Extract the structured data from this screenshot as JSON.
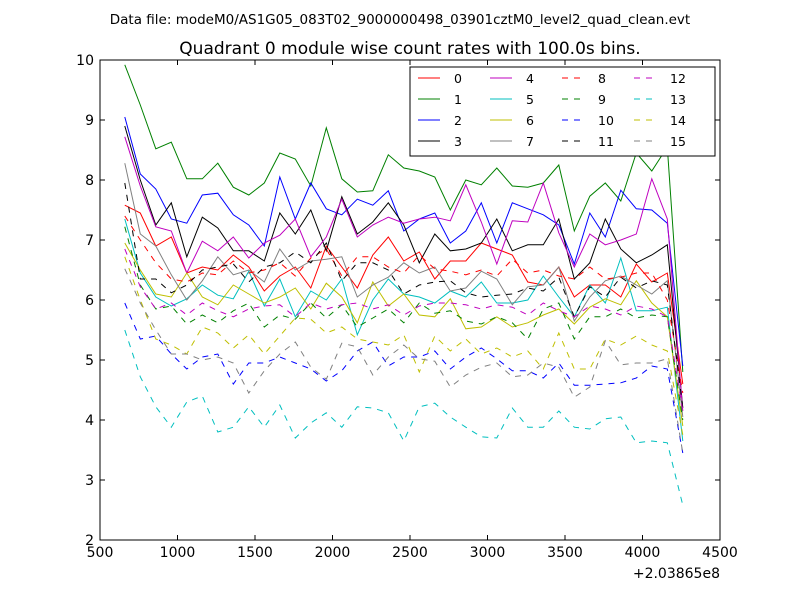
{
  "header": {
    "datafile": "Data file: modeM0/AS1G05_083T02_9000000498_03901cztM0_level2_quad_clean.evt"
  },
  "chart_data": {
    "type": "line",
    "title": "Quadrant 0 module wise count rates with 100.0s bins.",
    "xlabel": "",
    "ylabel": "",
    "x_offset_label": "+2.03865e8",
    "xlim": [
      500,
      4500
    ],
    "ylim": [
      2,
      10
    ],
    "xticks": [
      500,
      1000,
      1500,
      2000,
      2500,
      3000,
      3500,
      4000,
      4500
    ],
    "yticks": [
      2,
      3,
      4,
      5,
      6,
      7,
      8,
      9,
      10
    ],
    "grid": false,
    "legend_position": "top-right",
    "x": [
      660,
      760,
      860,
      960,
      1060,
      1160,
      1260,
      1360,
      1460,
      1560,
      1660,
      1760,
      1860,
      1960,
      2060,
      2160,
      2260,
      2360,
      2460,
      2560,
      2660,
      2760,
      2860,
      2960,
      3060,
      3160,
      3260,
      3360,
      3460,
      3560,
      3660,
      3760,
      3860,
      3960,
      4060,
      4160,
      4260
    ],
    "series": [
      {
        "name": "0",
        "color": "#ff0000",
        "dash": "solid",
        "values": [
          7.58,
          7.45,
          6.9,
          7.05,
          6.45,
          6.55,
          6.5,
          6.75,
          6.55,
          6.15,
          6.4,
          6.55,
          6.2,
          6.9,
          6.55,
          6.2,
          6.75,
          7.05,
          6.65,
          6.8,
          6.35,
          6.65,
          6.65,
          6.95,
          6.85,
          6.75,
          6.3,
          6.25,
          6.55,
          6.05,
          6.25,
          6.25,
          6.05,
          6.6,
          6.3,
          6.45,
          4.6
        ]
      },
      {
        "name": "1",
        "color": "#008000",
        "dash": "solid",
        "values": [
          9.92,
          9.25,
          8.52,
          8.63,
          8.02,
          8.02,
          8.28,
          7.88,
          7.75,
          7.95,
          8.45,
          8.35,
          7.9,
          8.87,
          8.02,
          7.8,
          7.82,
          8.42,
          8.2,
          8.15,
          8.05,
          7.5,
          8.0,
          7.92,
          8.2,
          7.9,
          7.88,
          7.95,
          8.25,
          7.15,
          7.73,
          7.95,
          7.65,
          8.45,
          8.15,
          8.55,
          4.8
        ]
      },
      {
        "name": "2",
        "color": "#0000ff",
        "dash": "solid",
        "values": [
          9.05,
          8.1,
          7.85,
          7.35,
          7.28,
          7.75,
          7.78,
          7.42,
          7.25,
          6.9,
          8.05,
          7.35,
          7.95,
          7.52,
          7.42,
          7.68,
          7.58,
          7.82,
          7.15,
          7.35,
          7.45,
          6.95,
          7.15,
          7.62,
          6.95,
          7.62,
          7.52,
          7.42,
          7.25,
          6.6,
          7.45,
          7.05,
          7.83,
          7.52,
          7.5,
          7.28,
          4.9
        ]
      },
      {
        "name": "3",
        "color": "#000000",
        "dash": "solid",
        "values": [
          8.9,
          8.0,
          7.25,
          7.62,
          6.72,
          7.38,
          7.2,
          6.82,
          6.82,
          6.65,
          7.45,
          7.1,
          7.5,
          6.82,
          7.72,
          7.1,
          7.3,
          7.62,
          7.25,
          6.62,
          7.1,
          6.82,
          6.85,
          6.95,
          7.35,
          6.82,
          6.92,
          6.92,
          7.35,
          6.35,
          6.62,
          7.35,
          6.85,
          6.62,
          6.75,
          6.92,
          4.2
        ]
      },
      {
        "name": "4",
        "color": "#bf00bf",
        "dash": "solid",
        "values": [
          8.72,
          7.9,
          7.22,
          7.15,
          6.45,
          6.98,
          6.82,
          7.05,
          6.7,
          6.95,
          7.08,
          7.35,
          6.72,
          7.05,
          7.68,
          7.05,
          7.25,
          7.38,
          7.28,
          7.35,
          7.38,
          7.32,
          7.92,
          7.3,
          6.6,
          7.32,
          7.3,
          7.95,
          7.12,
          6.55,
          7.1,
          6.92,
          7.0,
          7.1,
          8.02,
          7.35,
          4.15
        ]
      },
      {
        "name": "5",
        "color": "#00bfbf",
        "dash": "solid",
        "values": [
          7.35,
          6.45,
          6.05,
          5.9,
          6.02,
          6.25,
          6.08,
          6.02,
          6.48,
          5.9,
          6.35,
          5.72,
          6.15,
          6.0,
          6.35,
          5.42,
          6.0,
          6.35,
          6.1,
          6.05,
          5.95,
          6.15,
          6.05,
          6.3,
          5.95,
          5.95,
          6.0,
          6.4,
          6.05,
          5.72,
          6.25,
          5.95,
          6.7,
          5.82,
          5.82,
          5.88,
          3.65
        ]
      },
      {
        "name": "6",
        "color": "#bfbf00",
        "dash": "solid",
        "values": [
          6.95,
          6.5,
          6.1,
          6.05,
          6.45,
          6.05,
          5.92,
          6.25,
          6.1,
          5.95,
          6.05,
          6.2,
          5.85,
          6.28,
          6.05,
          5.62,
          6.3,
          5.9,
          6.1,
          5.75,
          5.72,
          6.02,
          5.52,
          5.55,
          5.72,
          5.55,
          5.62,
          5.75,
          5.85,
          5.6,
          5.88,
          6.02,
          5.92,
          6.32,
          5.95,
          5.72,
          3.9
        ]
      },
      {
        "name": "7",
        "color": "#808080",
        "dash": "solid",
        "values": [
          8.28,
          7.1,
          6.9,
          6.42,
          6.0,
          6.32,
          6.72,
          6.42,
          6.5,
          6.3,
          6.85,
          6.5,
          6.65,
          6.68,
          6.72,
          6.05,
          6.25,
          6.38,
          6.62,
          6.45,
          6.55,
          6.15,
          6.2,
          6.48,
          6.35,
          5.92,
          6.22,
          6.25,
          6.55,
          5.65,
          6.05,
          6.32,
          6.4,
          6.25,
          6.1,
          6.32,
          4.05
        ]
      },
      {
        "name": "8",
        "color": "#ff0000",
        "dash": "dashed",
        "values": [
          7.4,
          7.0,
          6.62,
          6.35,
          6.3,
          6.45,
          6.42,
          6.65,
          6.45,
          6.5,
          6.62,
          6.4,
          6.7,
          6.85,
          6.4,
          6.72,
          6.72,
          6.55,
          6.45,
          6.75,
          6.52,
          6.48,
          6.42,
          6.5,
          6.4,
          6.68,
          6.45,
          6.5,
          6.4,
          6.35,
          6.55,
          6.35,
          6.38,
          6.45,
          6.45,
          6.0,
          4.45
        ]
      },
      {
        "name": "9",
        "color": "#008000",
        "dash": "dashed",
        "values": [
          7.22,
          6.25,
          5.85,
          5.9,
          5.6,
          5.75,
          5.62,
          5.82,
          5.95,
          5.55,
          5.75,
          5.68,
          5.95,
          5.7,
          5.92,
          5.55,
          5.7,
          5.85,
          5.62,
          5.95,
          5.78,
          5.82,
          5.65,
          5.6,
          5.72,
          5.62,
          5.35,
          5.85,
          5.95,
          5.35,
          5.72,
          5.72,
          5.85,
          5.7,
          5.75,
          5.72,
          4.0
        ]
      },
      {
        "name": "10",
        "color": "#0000ff",
        "dash": "dashed",
        "values": [
          5.95,
          5.35,
          5.4,
          5.1,
          4.85,
          5.05,
          5.1,
          4.6,
          4.95,
          4.95,
          5.05,
          4.95,
          4.85,
          4.65,
          4.82,
          5.15,
          5.3,
          4.9,
          5.05,
          5.05,
          5.15,
          4.85,
          5.05,
          5.2,
          5.02,
          4.82,
          4.82,
          4.7,
          4.95,
          4.58,
          4.58,
          4.6,
          4.62,
          4.7,
          4.9,
          4.85,
          3.45
        ]
      },
      {
        "name": "11",
        "color": "#000000",
        "dash": "dashed",
        "values": [
          7.95,
          6.35,
          6.35,
          6.12,
          6.25,
          6.5,
          6.55,
          6.6,
          6.3,
          6.55,
          6.62,
          6.8,
          6.62,
          6.95,
          6.32,
          6.62,
          6.62,
          6.5,
          6.1,
          6.25,
          6.3,
          6.32,
          6.12,
          6.05,
          6.08,
          6.1,
          6.2,
          6.15,
          6.38,
          5.72,
          6.22,
          6.05,
          6.38,
          6.2,
          6.32,
          6.25,
          4.2
        ]
      },
      {
        "name": "12",
        "color": "#bf00bf",
        "dash": "dashed",
        "values": [
          6.85,
          6.22,
          5.85,
          5.95,
          5.75,
          5.95,
          5.82,
          5.72,
          5.85,
          5.9,
          5.92,
          5.72,
          5.95,
          5.85,
          5.92,
          5.95,
          5.85,
          5.92,
          5.75,
          5.9,
          5.95,
          5.95,
          5.92,
          5.85,
          5.92,
          5.88,
          5.75,
          5.95,
          5.82,
          5.72,
          5.9,
          5.85,
          5.75,
          5.9,
          5.85,
          5.72,
          4.15
        ]
      },
      {
        "name": "13",
        "color": "#00bfbf",
        "dash": "dashed",
        "values": [
          5.5,
          4.72,
          4.22,
          3.88,
          4.3,
          4.4,
          3.8,
          3.88,
          4.22,
          3.88,
          4.25,
          3.7,
          3.95,
          4.12,
          3.88,
          4.22,
          4.2,
          4.12,
          3.65,
          4.22,
          4.28,
          4.05,
          3.88,
          3.72,
          3.7,
          4.2,
          3.88,
          3.88,
          4.15,
          3.88,
          3.85,
          4.02,
          4.05,
          3.62,
          3.65,
          3.62,
          2.58
        ]
      },
      {
        "name": "14",
        "color": "#bfbf00",
        "dash": "dashed",
        "values": [
          6.72,
          6.0,
          5.35,
          5.25,
          5.1,
          5.55,
          5.45,
          5.2,
          5.42,
          5.1,
          5.4,
          5.7,
          5.68,
          5.45,
          5.55,
          5.35,
          5.3,
          5.25,
          5.42,
          4.8,
          5.4,
          5.15,
          5.35,
          5.1,
          5.2,
          5.05,
          5.15,
          4.85,
          5.45,
          4.85,
          4.85,
          5.35,
          5.25,
          5.4,
          5.25,
          5.15,
          3.75
        ]
      },
      {
        "name": "15",
        "color": "#808080",
        "dash": "dashed",
        "values": [
          6.52,
          5.95,
          5.5,
          5.1,
          5.1,
          5.0,
          5.05,
          4.95,
          4.45,
          4.82,
          5.1,
          5.3,
          4.88,
          4.68,
          5.28,
          5.22,
          4.75,
          5.05,
          5.25,
          5.02,
          4.98,
          4.55,
          4.75,
          4.88,
          4.95,
          4.72,
          4.75,
          4.95,
          4.88,
          4.38,
          4.55,
          5.32,
          4.92,
          4.95,
          4.95,
          5.02,
          3.45
        ]
      }
    ]
  }
}
